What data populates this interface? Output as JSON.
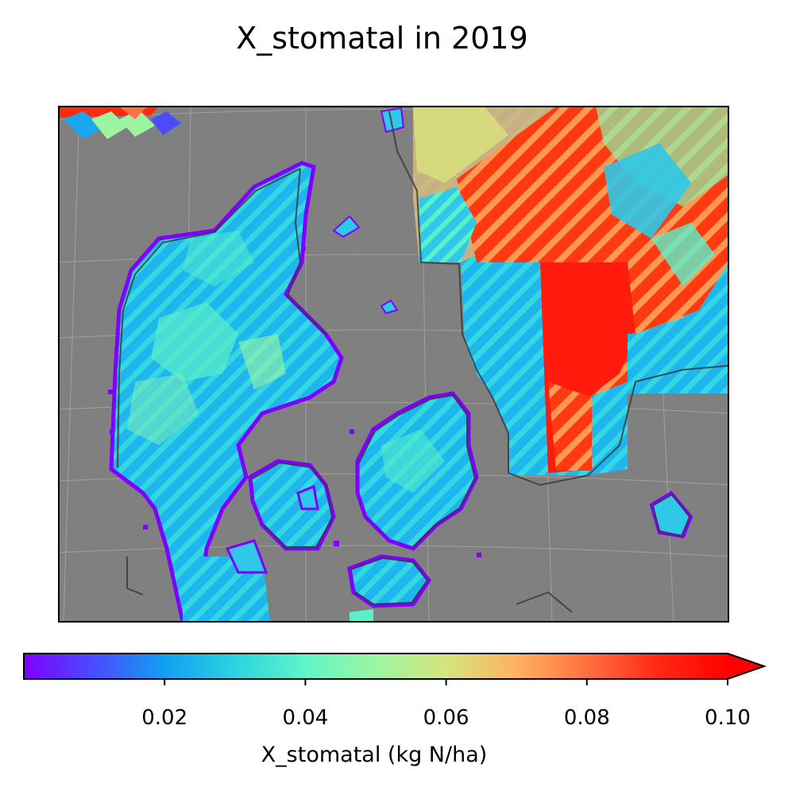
{
  "title": "X_stomatal in 2019",
  "map": {
    "region": "Denmark and southern Sweden",
    "ocean_color": "#808080",
    "coastline_color": "#3a3a3a",
    "gridlines": true,
    "colormap": "rainbow"
  },
  "colorbar": {
    "label": "X_stomatal (kg N/ha)",
    "vmin": 0.0,
    "vmax": 0.1,
    "extend": "max",
    "ticks": [
      "0.02",
      "0.04",
      "0.06",
      "0.08",
      "0.10"
    ],
    "tick_values": [
      0.02,
      0.04,
      0.06,
      0.08,
      0.1
    ],
    "colors": [
      "#7f00ff",
      "#4a4cfe",
      "#11a0f0",
      "#2bd4e0",
      "#5ff5c8",
      "#9cf6a1",
      "#d5e47e",
      "#ffb260",
      "#ff7040",
      "#ff2a15",
      "#ff0000"
    ]
  }
}
